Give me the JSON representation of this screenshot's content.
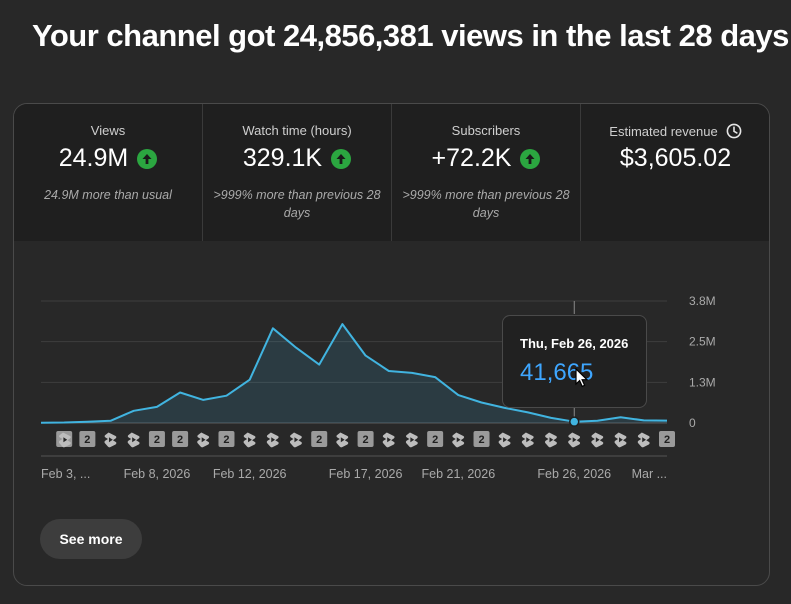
{
  "headline": "Your channel got 24,856,381 views in the last 28 days",
  "metrics": [
    {
      "label": "Views",
      "value": "24.9M",
      "sub": "24.9M more than usual",
      "trend": "up"
    },
    {
      "label": "Watch time (hours)",
      "value": "329.1K",
      "sub": ">999% more than previous 28 days",
      "trend": "up"
    },
    {
      "label": "Subscribers",
      "value": "+72.2K",
      "sub": ">999% more than previous 28 days",
      "trend": "up"
    },
    {
      "label": "Estimated revenue",
      "value": "$3,605.02",
      "sub": "",
      "trend": "none",
      "icon": "clock-icon"
    }
  ],
  "colors": {
    "accent": "#3ea6ff",
    "line": "#41b4e0",
    "up": "#2ba640"
  },
  "chart_data": {
    "type": "area",
    "title": "Views",
    "x": [
      "Feb 3",
      "Feb 4",
      "Feb 5",
      "Feb 6",
      "Feb 7",
      "Feb 8",
      "Feb 9",
      "Feb 10",
      "Feb 11",
      "Feb 12",
      "Feb 13",
      "Feb 14",
      "Feb 15",
      "Feb 16",
      "Feb 17",
      "Feb 18",
      "Feb 19",
      "Feb 20",
      "Feb 21",
      "Feb 22",
      "Feb 23",
      "Feb 24",
      "Feb 25",
      "Feb 26",
      "Feb 27",
      "Feb 28",
      "Mar 1",
      "Mar 2"
    ],
    "values": [
      10000,
      15000,
      40000,
      70000,
      380000,
      500000,
      950000,
      720000,
      850000,
      1350000,
      2950000,
      2350000,
      1820000,
      3080000,
      2100000,
      1620000,
      1560000,
      1430000,
      870000,
      640000,
      470000,
      330000,
      160000,
      41665,
      70000,
      180000,
      80000,
      75000
    ],
    "xtick_labels": [
      "Feb 3, ...",
      "Feb 8, 2026",
      "Feb 12, 2026",
      "Feb 17, 2026",
      "Feb 21, 2026",
      "Feb 26, 2026",
      "Mar ..."
    ],
    "xtick_index": [
      0,
      5,
      9,
      14,
      18,
      23,
      27
    ],
    "ytick_labels": [
      "0",
      "1.3M",
      "2.5M",
      "3.8M"
    ],
    "ytick_values": [
      0,
      1266667,
      2533333,
      3800000
    ],
    "ylim": [
      0,
      3800000
    ],
    "markers": [
      "short",
      "2",
      "2",
      "short",
      "short",
      "2",
      "2",
      "short",
      "2",
      "short",
      "short",
      "short",
      "2",
      "short",
      "2",
      "short",
      "short",
      "2",
      "short",
      "2",
      "short",
      "short",
      "short",
      "short",
      "short",
      "short",
      "short",
      "2"
    ],
    "tooltip": {
      "date": "Thu, Feb 26, 2026",
      "value": "41,665",
      "index": 23
    }
  },
  "see_more_label": "See more"
}
